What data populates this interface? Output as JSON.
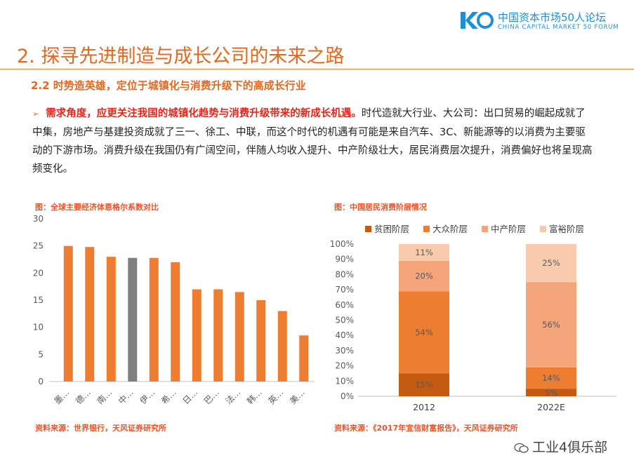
{
  "header": {
    "logo_cn": "中国资本市场50人论坛",
    "logo_en": "CHINA CAPITAL MARKET 50 FORUM",
    "title": "2. 探寻先进制造与成长公司的未来之路",
    "subtitle": "2.2 时势造英雄，定位于城镇化与消费升级下的高成长行业"
  },
  "paragraph": {
    "bullet": "➢",
    "highlight": "需求角度，应更关注我国的城镇化趋势与消费升级带来的新成长机遇。",
    "text": "时代造就大行业、大公司：出口贸易的崛起成就了中集，房地产与基建投资成就了三一、徐工、中联，而这个时代的机遇有可能是来自汽车、3C、新能源等的以消费为主要驱动的下游市场。消费升级在我国仍有广阔空间，伴随人均收入提升、中产阶级壮大，居民消费层次提升，消费偏好也将呈现高频变化。"
  },
  "figures": {
    "left_title": "图：全球主要经济体恩格尔系数对比",
    "left_source": "资料来源：世界银行，天风证券研究所",
    "right_title": "图：中国居民消费阶层情况",
    "right_source": "资料来源：《2017年宜信财富报告》，天风证券研究所"
  },
  "watermark": "工业4俱乐部",
  "chart_data": [
    {
      "type": "bar",
      "title": "图：全球主要经济体恩格尔系数对比",
      "categories": [
        "墨…",
        "德…",
        "南…",
        "中…",
        "伊…",
        "希…",
        "日…",
        "巴…",
        "法…",
        "韩…",
        "英…",
        "美…"
      ],
      "values": [
        25,
        24.8,
        23,
        22.8,
        22.8,
        22,
        17,
        17,
        16.5,
        15,
        13,
        8.5
      ],
      "highlight_index": 3,
      "ylim": [
        0,
        30
      ],
      "yticks": [
        0,
        5,
        10,
        15,
        20,
        25,
        30
      ],
      "colors": {
        "bar": "#ef7d31",
        "highlight": "#7f7f7f"
      }
    },
    {
      "type": "bar",
      "stacked": true,
      "percent": true,
      "title": "图：中国居民消费阶层情况",
      "categories": [
        "2012",
        "2022E"
      ],
      "series": [
        {
          "name": "贫困阶层",
          "values": [
            15,
            5
          ],
          "labels": [
            "15%",
            "5%"
          ],
          "color": "#c55a11"
        },
        {
          "name": "大众阶层",
          "values": [
            54,
            14
          ],
          "labels": [
            "54%",
            "14%"
          ],
          "color": "#ed7d31"
        },
        {
          "name": "中产阶层",
          "values": [
            20,
            56
          ],
          "labels": [
            "20%",
            "56%"
          ],
          "color": "#f4a57a"
        },
        {
          "name": "富裕阶层",
          "values": [
            11,
            25
          ],
          "labels": [
            "11%",
            "25%"
          ],
          "color": "#f8cbad"
        }
      ],
      "ylim": [
        0,
        100
      ],
      "yticks": [
        "0%",
        "10%",
        "20%",
        "30%",
        "40%",
        "50%",
        "60%",
        "70%",
        "80%",
        "90%",
        "100%"
      ],
      "legend": "top"
    }
  ]
}
